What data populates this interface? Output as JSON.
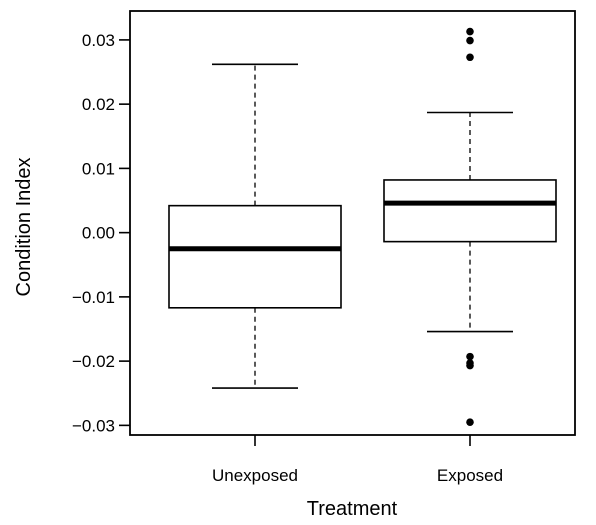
{
  "chart_data": {
    "type": "boxplot",
    "xlabel": "Treatment",
    "ylabel": "Condition Index",
    "ylim": [
      -0.0315,
      0.0345
    ],
    "yticks": [
      -0.03,
      -0.02,
      -0.01,
      0.0,
      0.01,
      0.02,
      0.03
    ],
    "ytick_labels": [
      "−0.03",
      "−0.02",
      "−0.01",
      "0.00",
      "0.01",
      "0.02",
      "0.03"
    ],
    "categories": [
      "Unexposed",
      "Exposed"
    ],
    "boxes": [
      {
        "category": "Unexposed",
        "whisker_low": -0.0242,
        "q1": -0.0117,
        "median": -0.0025,
        "q3": 0.0042,
        "whisker_high": 0.0262,
        "outliers": []
      },
      {
        "category": "Exposed",
        "whisker_low": -0.0154,
        "q1": -0.0014,
        "median": 0.0046,
        "q3": 0.0082,
        "whisker_high": 0.0187,
        "outliers": [
          0.0313,
          0.0299,
          0.0273,
          -0.0193,
          -0.0203,
          -0.0207,
          -0.0295
        ]
      }
    ],
    "grid": false,
    "legend": "none",
    "colors": {
      "box_fill": "#ffffff",
      "stroke": "#000000",
      "median": "#000000",
      "outlier": "#000000"
    }
  }
}
